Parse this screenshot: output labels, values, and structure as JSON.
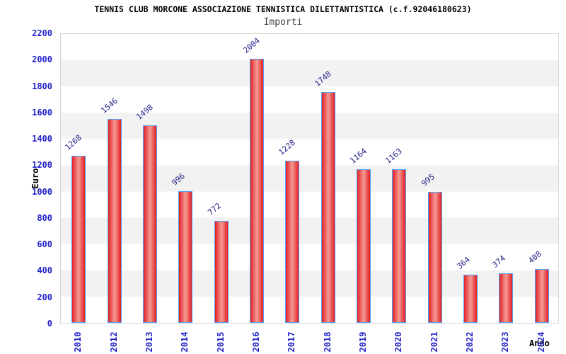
{
  "chart_data": {
    "type": "bar",
    "title": "TENNIS CLUB MORCONE ASSOCIAZIONE TENNISTICA DILETTANTISTICA (c.f.92046180623)",
    "subtitle": "Importi",
    "xlabel": "Anno",
    "ylabel": "Euro",
    "categories": [
      "2010",
      "2012",
      "2013",
      "2014",
      "2015",
      "2016",
      "2017",
      "2018",
      "2019",
      "2020",
      "2021",
      "2022",
      "2023",
      "2024"
    ],
    "values": [
      1268,
      1546,
      1498,
      996,
      772,
      2004,
      1228,
      1748,
      1164,
      1163,
      995,
      364,
      374,
      408
    ],
    "ylim": [
      0,
      2200
    ],
    "ytick_step": 200,
    "grid": "alternating-horizontal-bands",
    "legend": "none",
    "value_labels": "above-bar-rotated",
    "colors": {
      "bar_edge": "#e41f26",
      "bar_center": "#f49b94",
      "bar_border": "#4da3f5",
      "tick_label": "#2222cc",
      "value_label": "#22228c",
      "band": "#f2f2f2",
      "plot_border": "#d6d6d6",
      "title": "#000000",
      "subtitle": "#404040",
      "axis_title": "#000000"
    }
  }
}
